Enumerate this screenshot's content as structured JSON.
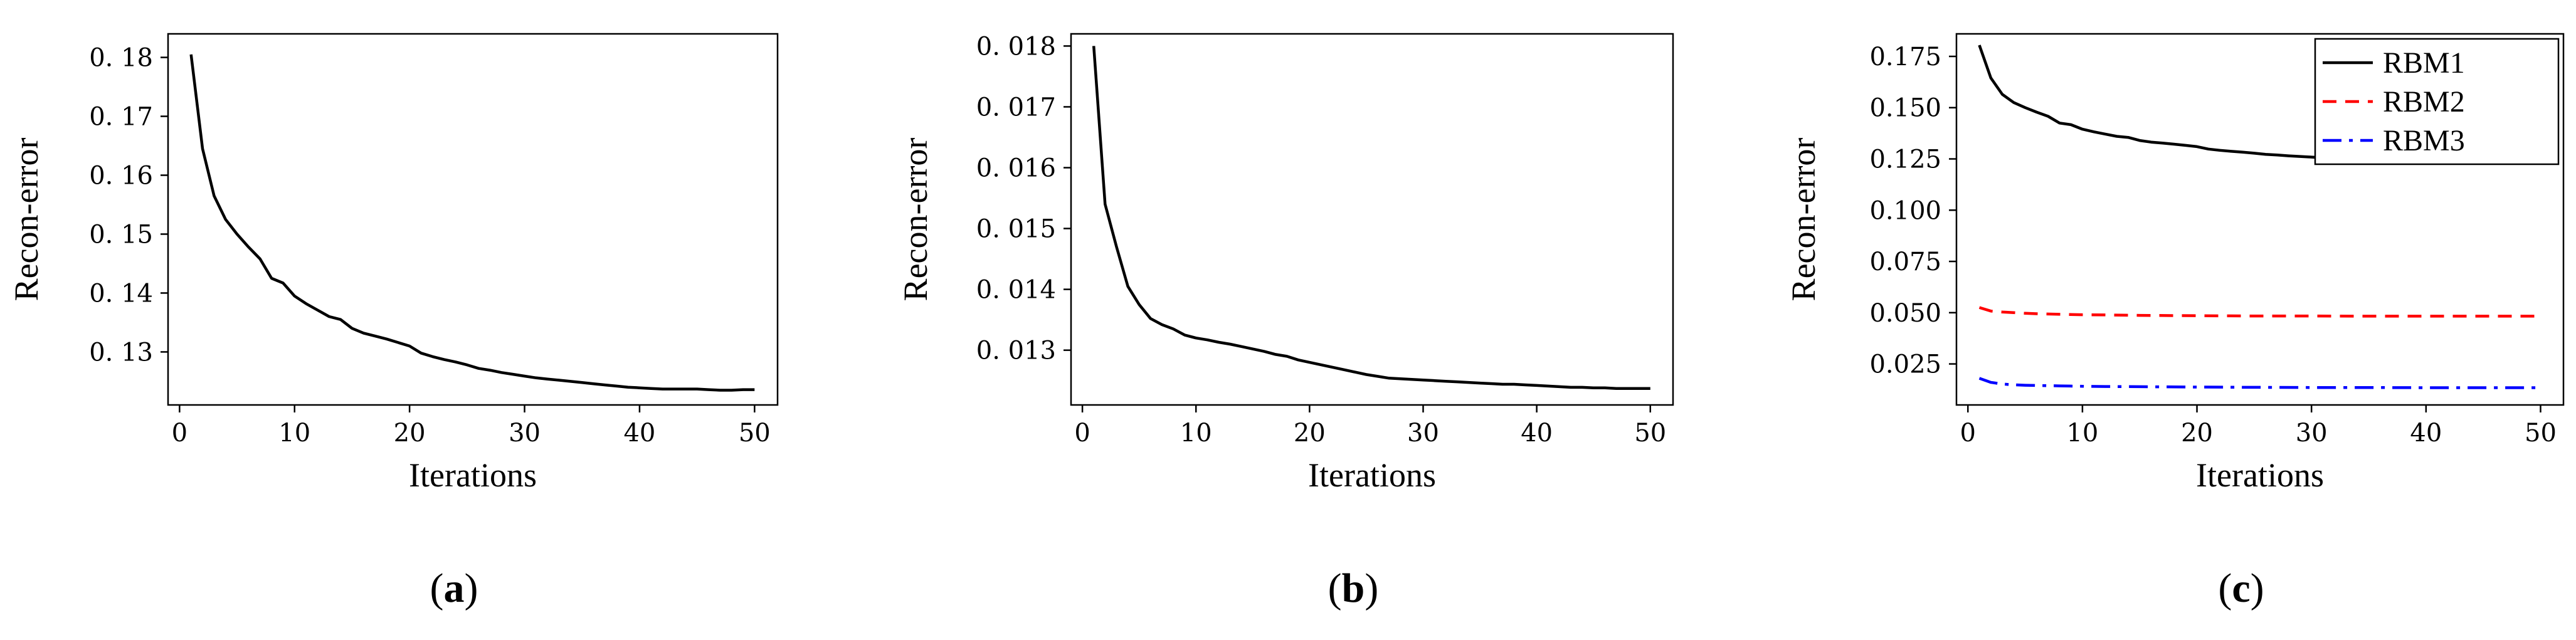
{
  "chart_data": [
    {
      "type": "line",
      "panel_label": "a",
      "xlabel": "Iterations",
      "ylabel": "Recon-error",
      "xlim": [
        -1,
        52
      ],
      "ylim": [
        0.121,
        0.184
      ],
      "xticks": [
        0,
        10,
        20,
        30,
        40,
        50
      ],
      "yticks": [
        0.13,
        0.14,
        0.15,
        0.16,
        0.17,
        0.18
      ],
      "ytick_labels": [
        "0. 13",
        "0. 14",
        "0. 15",
        "0. 16",
        "0. 17",
        "0. 18"
      ],
      "grid": false,
      "series": [
        {
          "color": "#000000",
          "dash": "solid",
          "x": [
            1,
            2,
            3,
            4,
            5,
            6,
            7,
            8,
            9,
            10,
            11,
            12,
            13,
            14,
            15,
            16,
            17,
            18,
            19,
            20,
            21,
            22,
            23,
            24,
            25,
            26,
            27,
            28,
            29,
            30,
            31,
            32,
            33,
            34,
            35,
            36,
            37,
            38,
            39,
            40,
            41,
            42,
            43,
            44,
            45,
            46,
            47,
            48,
            49,
            50
          ],
          "y": [
            0.1805,
            0.1645,
            0.1565,
            0.1525,
            0.15,
            0.1478,
            0.1458,
            0.1425,
            0.1417,
            0.1395,
            0.1382,
            0.1371,
            0.136,
            0.1355,
            0.134,
            0.1332,
            0.1327,
            0.1322,
            0.1316,
            0.131,
            0.1298,
            0.1292,
            0.1287,
            0.1283,
            0.1278,
            0.1272,
            0.1269,
            0.1265,
            0.1262,
            0.1259,
            0.1256,
            0.1254,
            0.1252,
            0.125,
            0.1248,
            0.1246,
            0.1244,
            0.1242,
            0.124,
            0.1239,
            0.1238,
            0.1237,
            0.1237,
            0.1237,
            0.1237,
            0.1236,
            0.1235,
            0.1235,
            0.1236,
            0.1236
          ]
        }
      ]
    },
    {
      "type": "line",
      "panel_label": "b",
      "xlabel": "Iterations",
      "ylabel": "Recon-error",
      "xlim": [
        -1,
        52
      ],
      "ylim": [
        0.0121,
        0.0182
      ],
      "xticks": [
        0,
        10,
        20,
        30,
        40,
        50
      ],
      "yticks": [
        0.013,
        0.014,
        0.015,
        0.016,
        0.017,
        0.018
      ],
      "ytick_labels": [
        "0. 013",
        "0. 014",
        "0. 015",
        "0. 016",
        "0. 017",
        "0. 018"
      ],
      "grid": false,
      "series": [
        {
          "color": "#000000",
          "dash": "solid",
          "x": [
            1,
            2,
            3,
            4,
            5,
            6,
            7,
            8,
            9,
            10,
            11,
            12,
            13,
            14,
            15,
            16,
            17,
            18,
            19,
            20,
            21,
            22,
            23,
            24,
            25,
            26,
            27,
            28,
            29,
            30,
            31,
            32,
            33,
            34,
            35,
            36,
            37,
            38,
            39,
            40,
            41,
            42,
            43,
            44,
            45,
            46,
            47,
            48,
            49,
            50
          ],
          "y": [
            0.018,
            0.0154,
            0.0147,
            0.01405,
            0.01375,
            0.01352,
            0.01342,
            0.01335,
            0.01325,
            0.0132,
            0.01317,
            0.01313,
            0.0131,
            0.01306,
            0.01302,
            0.01298,
            0.01293,
            0.0129,
            0.01284,
            0.0128,
            0.01276,
            0.01272,
            0.01268,
            0.01264,
            0.0126,
            0.01257,
            0.01254,
            0.01253,
            0.01252,
            0.01251,
            0.0125,
            0.01249,
            0.01248,
            0.01247,
            0.01246,
            0.01245,
            0.01244,
            0.01244,
            0.01243,
            0.01242,
            0.01241,
            0.0124,
            0.01239,
            0.01239,
            0.01238,
            0.01238,
            0.01237,
            0.01237,
            0.01237,
            0.01237
          ]
        }
      ]
    },
    {
      "type": "line",
      "panel_label": "c",
      "xlabel": "Iterations",
      "ylabel": "Recon-error",
      "xlim": [
        -1,
        52
      ],
      "ylim": [
        0.005,
        0.186
      ],
      "xticks": [
        0,
        10,
        20,
        30,
        40,
        50
      ],
      "yticks": [
        0.025,
        0.05,
        0.075,
        0.1,
        0.125,
        0.15,
        0.175
      ],
      "ytick_labels": [
        "0.025",
        "0.050",
        "0.075",
        "0.100",
        "0.125",
        "0.150",
        "0.175"
      ],
      "grid": false,
      "legend": "top-right",
      "series": [
        {
          "name": "RBM1",
          "color": "#000000",
          "dash": "solid",
          "x": [
            1,
            2,
            3,
            4,
            5,
            6,
            7,
            8,
            9,
            10,
            11,
            12,
            13,
            14,
            15,
            16,
            17,
            18,
            19,
            20,
            21,
            22,
            23,
            24,
            25,
            26,
            27,
            28,
            29,
            30,
            31,
            32,
            33,
            34,
            35,
            36,
            37,
            38,
            39,
            40,
            41,
            42,
            43,
            44,
            45,
            46,
            47,
            48,
            49,
            50
          ],
          "y": [
            0.1805,
            0.1645,
            0.1565,
            0.1525,
            0.15,
            0.1478,
            0.1458,
            0.1425,
            0.1417,
            0.1395,
            0.1382,
            0.1371,
            0.136,
            0.1355,
            0.134,
            0.1332,
            0.1327,
            0.1322,
            0.1316,
            0.131,
            0.1298,
            0.1292,
            0.1287,
            0.1283,
            0.1278,
            0.1272,
            0.1269,
            0.1265,
            0.1262,
            0.1259,
            0.1256,
            0.1254,
            0.1252,
            0.125,
            0.1248,
            0.1246,
            0.1244,
            0.1242,
            0.124,
            0.1239,
            0.1238,
            0.1237,
            0.1237,
            0.1237,
            0.1237,
            0.1236,
            0.1235,
            0.1235,
            0.1236,
            0.1236
          ]
        },
        {
          "name": "RBM2",
          "color": "#ff0000",
          "dash": "dashed",
          "x": [
            1,
            2,
            3,
            4,
            5,
            6,
            8,
            10,
            12,
            15,
            20,
            25,
            30,
            35,
            40,
            45,
            50
          ],
          "y": [
            0.0525,
            0.0508,
            0.0503,
            0.05,
            0.0497,
            0.0495,
            0.0492,
            0.049,
            0.0489,
            0.0487,
            0.0485,
            0.0484,
            0.0484,
            0.0483,
            0.0483,
            0.0483,
            0.0483
          ]
        },
        {
          "name": "RBM3",
          "color": "#0000ff",
          "dash": "dashdot",
          "x": [
            1,
            2,
            3,
            4,
            5,
            6,
            8,
            10,
            12,
            15,
            20,
            25,
            30,
            35,
            40,
            45,
            50
          ],
          "y": [
            0.018,
            0.016,
            0.0152,
            0.0148,
            0.0146,
            0.0145,
            0.0143,
            0.0141,
            0.014,
            0.0139,
            0.0137,
            0.0136,
            0.0135,
            0.0135,
            0.0134,
            0.0134,
            0.0134
          ]
        }
      ]
    }
  ]
}
